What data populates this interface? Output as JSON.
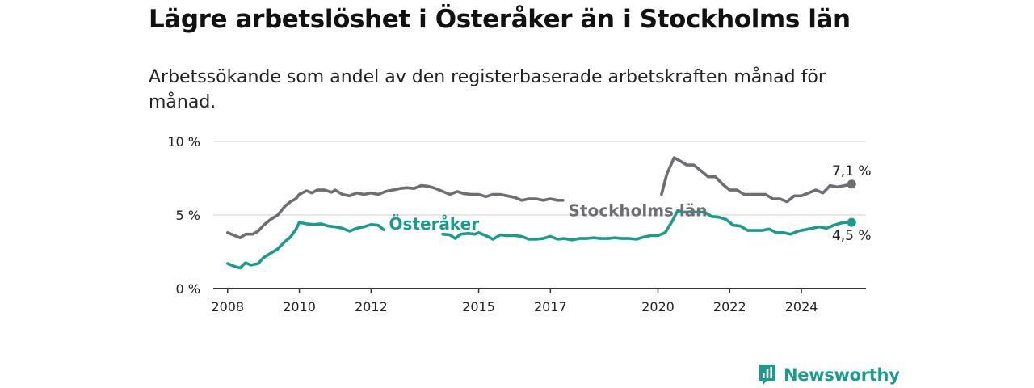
{
  "title": "Lägre arbetslöshet i Österåker än i Stockholms län",
  "subtitle": "Arbetssökande som andel av den registerbaserade arbetskraften månad för månad.",
  "brand": {
    "name": "Newsworthy",
    "icon": "newsworthy-logo-icon"
  },
  "colors": {
    "stockholm": "#6d6d72",
    "osteraker": "#1a9c8c",
    "grid": "#d9d9d9",
    "axis": "#333333"
  },
  "chart_data": {
    "type": "line",
    "xlim": [
      2007.6,
      2025.8
    ],
    "ylim": [
      0,
      10
    ],
    "y_ticks": [
      0,
      5,
      10
    ],
    "y_tick_labels": [
      "0 %",
      "5 %",
      "10 %"
    ],
    "x_ticks": [
      2008,
      2010,
      2012,
      2015,
      2017,
      2020,
      2022,
      2024
    ],
    "x_tick_labels": [
      "2008",
      "2010",
      "2012",
      "2015",
      "2017",
      "2020",
      "2022",
      "2024"
    ],
    "grid": true,
    "series": [
      {
        "name": "Stockholms län",
        "color": "#6d6d72",
        "end_label": "7,1 %",
        "segments": [
          {
            "x": [
              2008.0,
              2008.2,
              2008.35,
              2008.5,
              2008.7,
              2008.85,
              2009.0,
              2009.2,
              2009.4,
              2009.6,
              2009.75,
              2009.9,
              2010.0,
              2010.2,
              2010.35,
              2010.5,
              2010.7,
              2010.9,
              2011.0,
              2011.2,
              2011.4,
              2011.6,
              2011.8,
              2012.0,
              2012.2,
              2012.4,
              2012.6,
              2012.8,
              2013.0,
              2013.2,
              2013.4,
              2013.6,
              2013.8,
              2014.0,
              2014.2,
              2014.4,
              2014.6,
              2014.8,
              2015.0,
              2015.2,
              2015.4,
              2015.6,
              2015.8,
              2016.0,
              2016.2,
              2016.4,
              2016.6,
              2016.8,
              2017.0,
              2017.2,
              2017.35
            ],
            "y": [
              3.8,
              3.6,
              3.45,
              3.7,
              3.7,
              3.9,
              4.3,
              4.7,
              5.0,
              5.6,
              5.9,
              6.1,
              6.4,
              6.65,
              6.5,
              6.7,
              6.7,
              6.55,
              6.7,
              6.4,
              6.3,
              6.5,
              6.4,
              6.5,
              6.4,
              6.6,
              6.7,
              6.8,
              6.85,
              6.8,
              7.0,
              6.95,
              6.8,
              6.6,
              6.4,
              6.6,
              6.45,
              6.4,
              6.4,
              6.25,
              6.4,
              6.4,
              6.3,
              6.2,
              6.0,
              6.1,
              6.1,
              6.0,
              6.1,
              6.0,
              6.0
            ]
          },
          {
            "x": [
              2020.1,
              2020.25,
              2020.45,
              2020.6,
              2020.8,
              2021.0,
              2021.2,
              2021.4,
              2021.6,
              2021.8,
              2022.0,
              2022.2,
              2022.4,
              2022.6,
              2022.8,
              2023.0,
              2023.2,
              2023.4,
              2023.6,
              2023.8,
              2024.0,
              2024.2,
              2024.4,
              2024.6,
              2024.8,
              2025.0,
              2025.2,
              2025.4
            ],
            "y": [
              6.4,
              7.8,
              8.9,
              8.7,
              8.4,
              8.4,
              8.0,
              7.6,
              7.6,
              7.1,
              6.7,
              6.7,
              6.4,
              6.4,
              6.4,
              6.4,
              6.1,
              6.1,
              5.9,
              6.3,
              6.3,
              6.5,
              6.7,
              6.5,
              7.0,
              6.9,
              7.0,
              7.1
            ]
          }
        ],
        "end_point": {
          "x": 2025.4,
          "y": 7.1
        }
      },
      {
        "name": "Österåker",
        "color": "#1a9c8c",
        "end_label": "4,5 %",
        "segments": [
          {
            "x": [
              2008.0,
              2008.2,
              2008.35,
              2008.5,
              2008.65,
              2008.85,
              2009.0,
              2009.2,
              2009.4,
              2009.6,
              2009.75,
              2009.9,
              2010.0,
              2010.2,
              2010.4,
              2010.6,
              2010.8,
              2011.0,
              2011.2,
              2011.4,
              2011.6,
              2011.8,
              2012.0,
              2012.2,
              2012.35
            ],
            "y": [
              1.7,
              1.5,
              1.4,
              1.75,
              1.6,
              1.7,
              2.1,
              2.4,
              2.7,
              3.2,
              3.5,
              4.0,
              4.5,
              4.4,
              4.35,
              4.4,
              4.25,
              4.2,
              4.1,
              3.9,
              4.1,
              4.2,
              4.35,
              4.3,
              4.0
            ]
          },
          {
            "x": [
              2014.0,
              2014.2,
              2014.35,
              2014.5,
              2014.7,
              2014.9,
              2015.0,
              2015.2,
              2015.4,
              2015.6,
              2015.8,
              2016.0,
              2016.2,
              2016.4,
              2016.6,
              2016.8,
              2017.0,
              2017.2,
              2017.4,
              2017.6,
              2017.8,
              2018.0,
              2018.2,
              2018.4,
              2018.6,
              2018.8,
              2019.0,
              2019.2,
              2019.4,
              2019.6,
              2019.8,
              2020.0,
              2020.2,
              2020.4,
              2020.55,
              2020.7,
              2020.9,
              2021.1,
              2021.3,
              2021.5,
              2021.7,
              2021.9,
              2022.1,
              2022.3,
              2022.5,
              2022.7,
              2022.9,
              2023.1,
              2023.3,
              2023.5,
              2023.7,
              2023.9,
              2024.1,
              2024.3,
              2024.5,
              2024.7,
              2024.9,
              2025.1,
              2025.25,
              2025.4
            ],
            "y": [
              3.7,
              3.65,
              3.4,
              3.7,
              3.75,
              3.7,
              3.8,
              3.6,
              3.35,
              3.65,
              3.6,
              3.6,
              3.55,
              3.35,
              3.35,
              3.4,
              3.55,
              3.35,
              3.4,
              3.3,
              3.4,
              3.4,
              3.45,
              3.4,
              3.4,
              3.45,
              3.4,
              3.4,
              3.35,
              3.5,
              3.6,
              3.6,
              3.8,
              4.6,
              5.3,
              5.2,
              5.2,
              5.2,
              5.2,
              4.9,
              4.85,
              4.7,
              4.3,
              4.25,
              3.95,
              3.95,
              3.95,
              4.05,
              3.8,
              3.8,
              3.7,
              3.9,
              4.0,
              4.1,
              4.2,
              4.1,
              4.3,
              4.45,
              4.5,
              4.5
            ]
          }
        ],
        "end_point": {
          "x": 2025.4,
          "y": 4.5
        }
      }
    ]
  }
}
